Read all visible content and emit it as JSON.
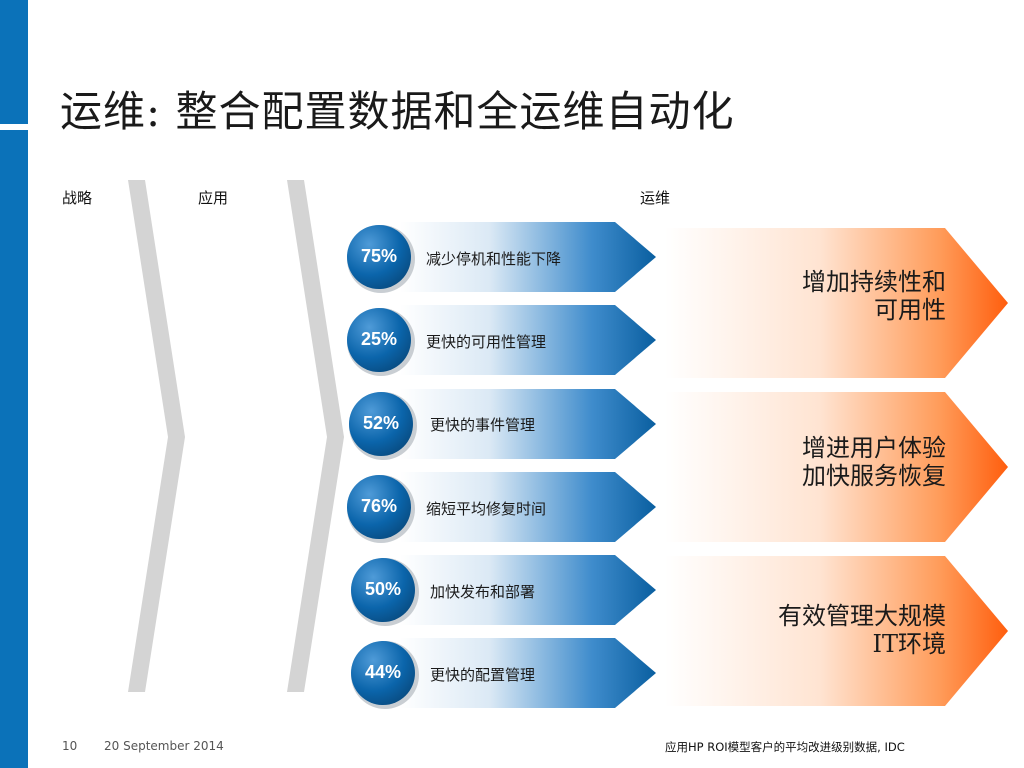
{
  "slide": {
    "title": "运维: 整合配置数据和全运维自动化",
    "columns": {
      "strategy": "战略",
      "application": "应用",
      "operations": "运维"
    },
    "items": [
      {
        "percent": "75%",
        "label": "减少停机和性能下降"
      },
      {
        "percent": "25%",
        "label": "更快的可用性管理"
      },
      {
        "percent": "52%",
        "label": "更快的事件管理"
      },
      {
        "percent": "76%",
        "label": "缩短平均修复时间"
      },
      {
        "percent": "50%",
        "label": "加快发布和部署"
      },
      {
        "percent": "44%",
        "label": "更快的配置管理"
      }
    ],
    "outcomes": [
      {
        "line1": "增加持续性和",
        "line2": "可用性"
      },
      {
        "line1": "增进用户体验",
        "line2": "加快服务恢复"
      },
      {
        "line1": "有效管理大规模",
        "line2": "IT环境"
      }
    ]
  },
  "footer": {
    "page_number": "10",
    "date": "20 September 2014",
    "source": "应用HP ROI模型客户的平均改进级别数据, IDC"
  },
  "colors": {
    "brand_blue": "#0b72b9",
    "dark_blue": "#0a5fa0",
    "accent_orange": "#ff6a1a",
    "chevron_gray": "#d4d4d4"
  }
}
